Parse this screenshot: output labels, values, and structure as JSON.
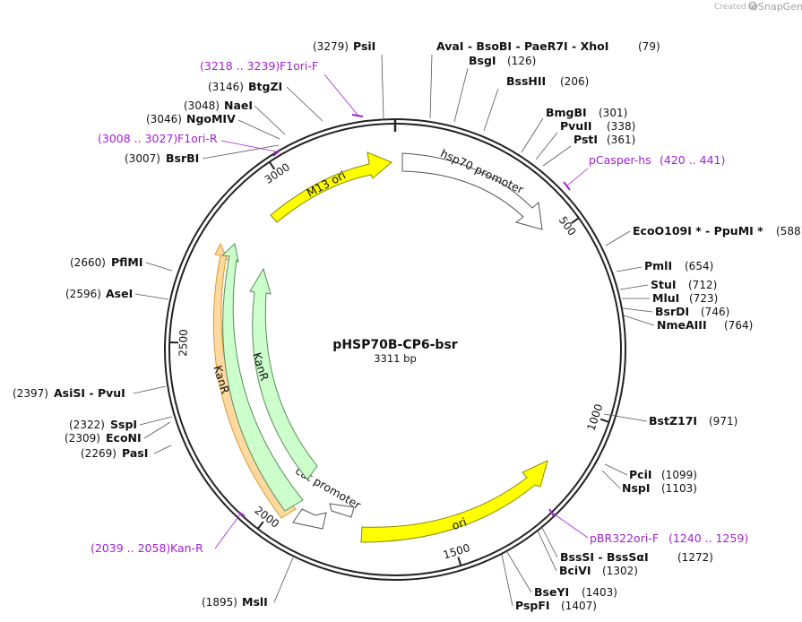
{
  "plasmid": {
    "name": "pHSP70B-CP6-bsr",
    "length_label": "3311 bp",
    "length": 3311
  },
  "credit": {
    "text": "Created by",
    "logo": "SnapGene",
    "logo_icon": "snapgene-logo-icon"
  },
  "ticks": [
    {
      "pos": 500,
      "label": "500"
    },
    {
      "pos": 1000,
      "label": "1000"
    },
    {
      "pos": 1500,
      "label": "1500"
    },
    {
      "pos": 2000,
      "label": "2000"
    },
    {
      "pos": 2500,
      "label": "2500"
    },
    {
      "pos": 3000,
      "label": "3000"
    }
  ],
  "features": [
    {
      "name": "M13 ori",
      "color": "#ffff00",
      "stroke": "#8a8a00"
    },
    {
      "name": "hsp70 promoter",
      "color": "#ffffff",
      "stroke": "#555555"
    },
    {
      "name": "ori",
      "color": "#ffff00",
      "stroke": "#8a8a00"
    },
    {
      "name": "cat promoter",
      "color": "#ffffff",
      "stroke": "#555555"
    },
    {
      "name": "KanR",
      "color": "#ccffcc",
      "stroke": "#5a8a5a"
    },
    {
      "name": "KanR",
      "color": "#ccffcc",
      "stroke": "#5a8a5a"
    }
  ],
  "sites": [
    {
      "name": "PsiI",
      "pos_label": "(3279)"
    },
    {
      "name": "AvaI  -  BsoBI  -  PaeR7I  -  XhoI",
      "pos_label": "(79)"
    },
    {
      "name": "BsgI",
      "pos_label": "(126)"
    },
    {
      "name": "BssHII",
      "pos_label": "(206)"
    },
    {
      "name": "BmgBI",
      "pos_label": "(301)"
    },
    {
      "name": "PvuII",
      "pos_label": "(338)"
    },
    {
      "name": "PstI",
      "pos_label": "(361)"
    },
    {
      "name": "EcoO109I *  -  PpuMI *",
      "pos_label": "(588)"
    },
    {
      "name": "PmlI",
      "pos_label": "(654)"
    },
    {
      "name": "StuI",
      "pos_label": "(712)"
    },
    {
      "name": "MluI",
      "pos_label": "(723)"
    },
    {
      "name": "BsrDI",
      "pos_label": "(746)"
    },
    {
      "name": "NmeAIII",
      "pos_label": "(764)"
    },
    {
      "name": "BstZ17I",
      "pos_label": "(971)"
    },
    {
      "name": "PciI",
      "pos_label": "(1099)"
    },
    {
      "name": "NspI",
      "pos_label": "(1103)"
    },
    {
      "name": "BssSI  -  BssSαI",
      "pos_label": "(1272)"
    },
    {
      "name": "BciVI",
      "pos_label": "(1302)"
    },
    {
      "name": "BseYI",
      "pos_label": "(1403)"
    },
    {
      "name": "PspFI",
      "pos_label": "(1407)"
    },
    {
      "name": "MslI",
      "pos_label": "(1895)"
    },
    {
      "name": "PasI",
      "pos_label": "(2269)"
    },
    {
      "name": "EcoNI",
      "pos_label": "(2309)"
    },
    {
      "name": "SspI",
      "pos_label": "(2322)"
    },
    {
      "name": "AsiSI  -  PvuI",
      "pos_label": "(2397)"
    },
    {
      "name": "AseI",
      "pos_label": "(2596)"
    },
    {
      "name": "PflMI",
      "pos_label": "(2660)"
    },
    {
      "name": "BsrBI",
      "pos_label": "(3007)"
    },
    {
      "name": "NgoMIV",
      "pos_label": "(3046)"
    },
    {
      "name": "NaeI",
      "pos_label": "(3048)"
    },
    {
      "name": "BtgZI",
      "pos_label": "(3146)"
    }
  ],
  "primers": [
    {
      "name": "F1ori-F",
      "range": "(3218 .. 3239)"
    },
    {
      "name": "pCasper-hs",
      "range": "(420 .. 441)"
    },
    {
      "name": "pBR322ori-F",
      "range": "(1240 .. 1259)"
    },
    {
      "name": "Kan-R",
      "range": "(2039 .. 2058)"
    },
    {
      "name": "F1ori-R",
      "range": "(3008 .. 3027)"
    }
  ]
}
